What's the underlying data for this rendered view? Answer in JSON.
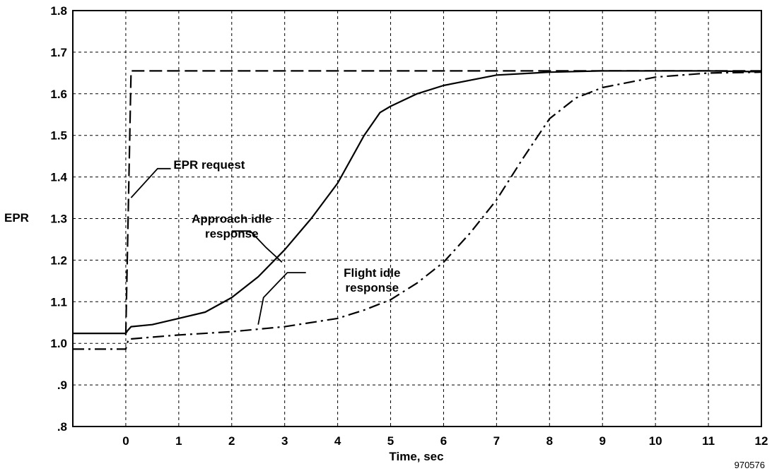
{
  "chart_data": {
    "type": "line",
    "title": "",
    "xlabel": "Time, sec",
    "ylabel": "EPR",
    "xlim": [
      -1,
      12
    ],
    "ylim": [
      0.8,
      1.8
    ],
    "x_ticks": [
      0,
      1,
      2,
      3,
      4,
      5,
      6,
      7,
      8,
      9,
      10,
      11,
      12
    ],
    "x_tick_labels": [
      "0",
      "1",
      "2",
      "3",
      "4",
      "5",
      "6",
      "7",
      "8",
      "9",
      "10",
      "11",
      "12"
    ],
    "y_ticks": [
      0.8,
      0.9,
      1.0,
      1.1,
      1.2,
      1.3,
      1.4,
      1.5,
      1.6,
      1.7,
      1.8
    ],
    "y_tick_labels": [
      ".8",
      ".9",
      "1.0",
      "1.1",
      "1.2",
      "1.3",
      "1.4",
      "1.5",
      "1.6",
      "1.7",
      "1.8"
    ],
    "grid": true,
    "legend": "none",
    "series": [
      {
        "name": "EPR request",
        "line_style": "long-dash",
        "color": "#000000",
        "points": [
          [
            0,
            1.02
          ],
          [
            0.1,
            1.655
          ],
          [
            12,
            1.655
          ]
        ]
      },
      {
        "name": "Approach idle response",
        "line_style": "solid",
        "color": "#000000",
        "points": [
          [
            -1,
            1.024
          ],
          [
            0,
            1.024
          ],
          [
            0.03,
            1.03
          ],
          [
            0.1,
            1.04
          ],
          [
            0.5,
            1.045
          ],
          [
            1,
            1.06
          ],
          [
            1.5,
            1.075
          ],
          [
            2,
            1.11
          ],
          [
            2.5,
            1.16
          ],
          [
            3,
            1.225
          ],
          [
            3.5,
            1.3
          ],
          [
            4,
            1.385
          ],
          [
            4.5,
            1.5
          ],
          [
            4.8,
            1.555
          ],
          [
            5,
            1.57
          ],
          [
            5.5,
            1.6
          ],
          [
            6,
            1.62
          ],
          [
            7,
            1.645
          ],
          [
            8,
            1.652
          ],
          [
            9,
            1.655
          ],
          [
            10,
            1.655
          ],
          [
            11,
            1.655
          ],
          [
            12,
            1.653
          ]
        ]
      },
      {
        "name": "Flight idle response",
        "line_style": "dash-dot",
        "color": "#000000",
        "points": [
          [
            -1,
            0.986
          ],
          [
            0,
            0.986
          ],
          [
            0.05,
            1.01
          ],
          [
            0.5,
            1.015
          ],
          [
            1,
            1.02
          ],
          [
            2,
            1.028
          ],
          [
            3,
            1.04
          ],
          [
            4,
            1.06
          ],
          [
            4.5,
            1.08
          ],
          [
            5,
            1.105
          ],
          [
            5.5,
            1.145
          ],
          [
            6,
            1.195
          ],
          [
            6.5,
            1.265
          ],
          [
            7,
            1.345
          ],
          [
            7.5,
            1.445
          ],
          [
            8,
            1.54
          ],
          [
            8.5,
            1.59
          ],
          [
            9,
            1.615
          ],
          [
            10,
            1.64
          ],
          [
            11,
            1.65
          ],
          [
            12,
            1.652
          ]
        ]
      }
    ],
    "annotations": [
      {
        "id": "epr-request",
        "lines": [
          "EPR request"
        ],
        "x": 0.9,
        "y": 1.42,
        "align": "start",
        "pointer": [
          [
            0.85,
            1.42
          ],
          [
            0.6,
            1.42
          ],
          [
            0.1,
            1.35
          ]
        ]
      },
      {
        "id": "approach-idle",
        "lines": [
          "Approach idle",
          "response"
        ],
        "x": 2.0,
        "y": 1.29,
        "align": "middle",
        "pointer": [
          [
            2.0,
            1.27
          ],
          [
            2.35,
            1.27
          ],
          [
            2.65,
            1.23
          ],
          [
            2.95,
            1.195
          ]
        ]
      },
      {
        "id": "flight-idle",
        "lines": [
          "Flight idle",
          "response"
        ],
        "x": 4.65,
        "y": 1.16,
        "align": "middle",
        "pointer": [
          [
            3.4,
            1.17
          ],
          [
            3.05,
            1.17
          ],
          [
            2.6,
            1.11
          ],
          [
            2.5,
            1.045
          ]
        ]
      }
    ],
    "figure_number": "970576"
  }
}
